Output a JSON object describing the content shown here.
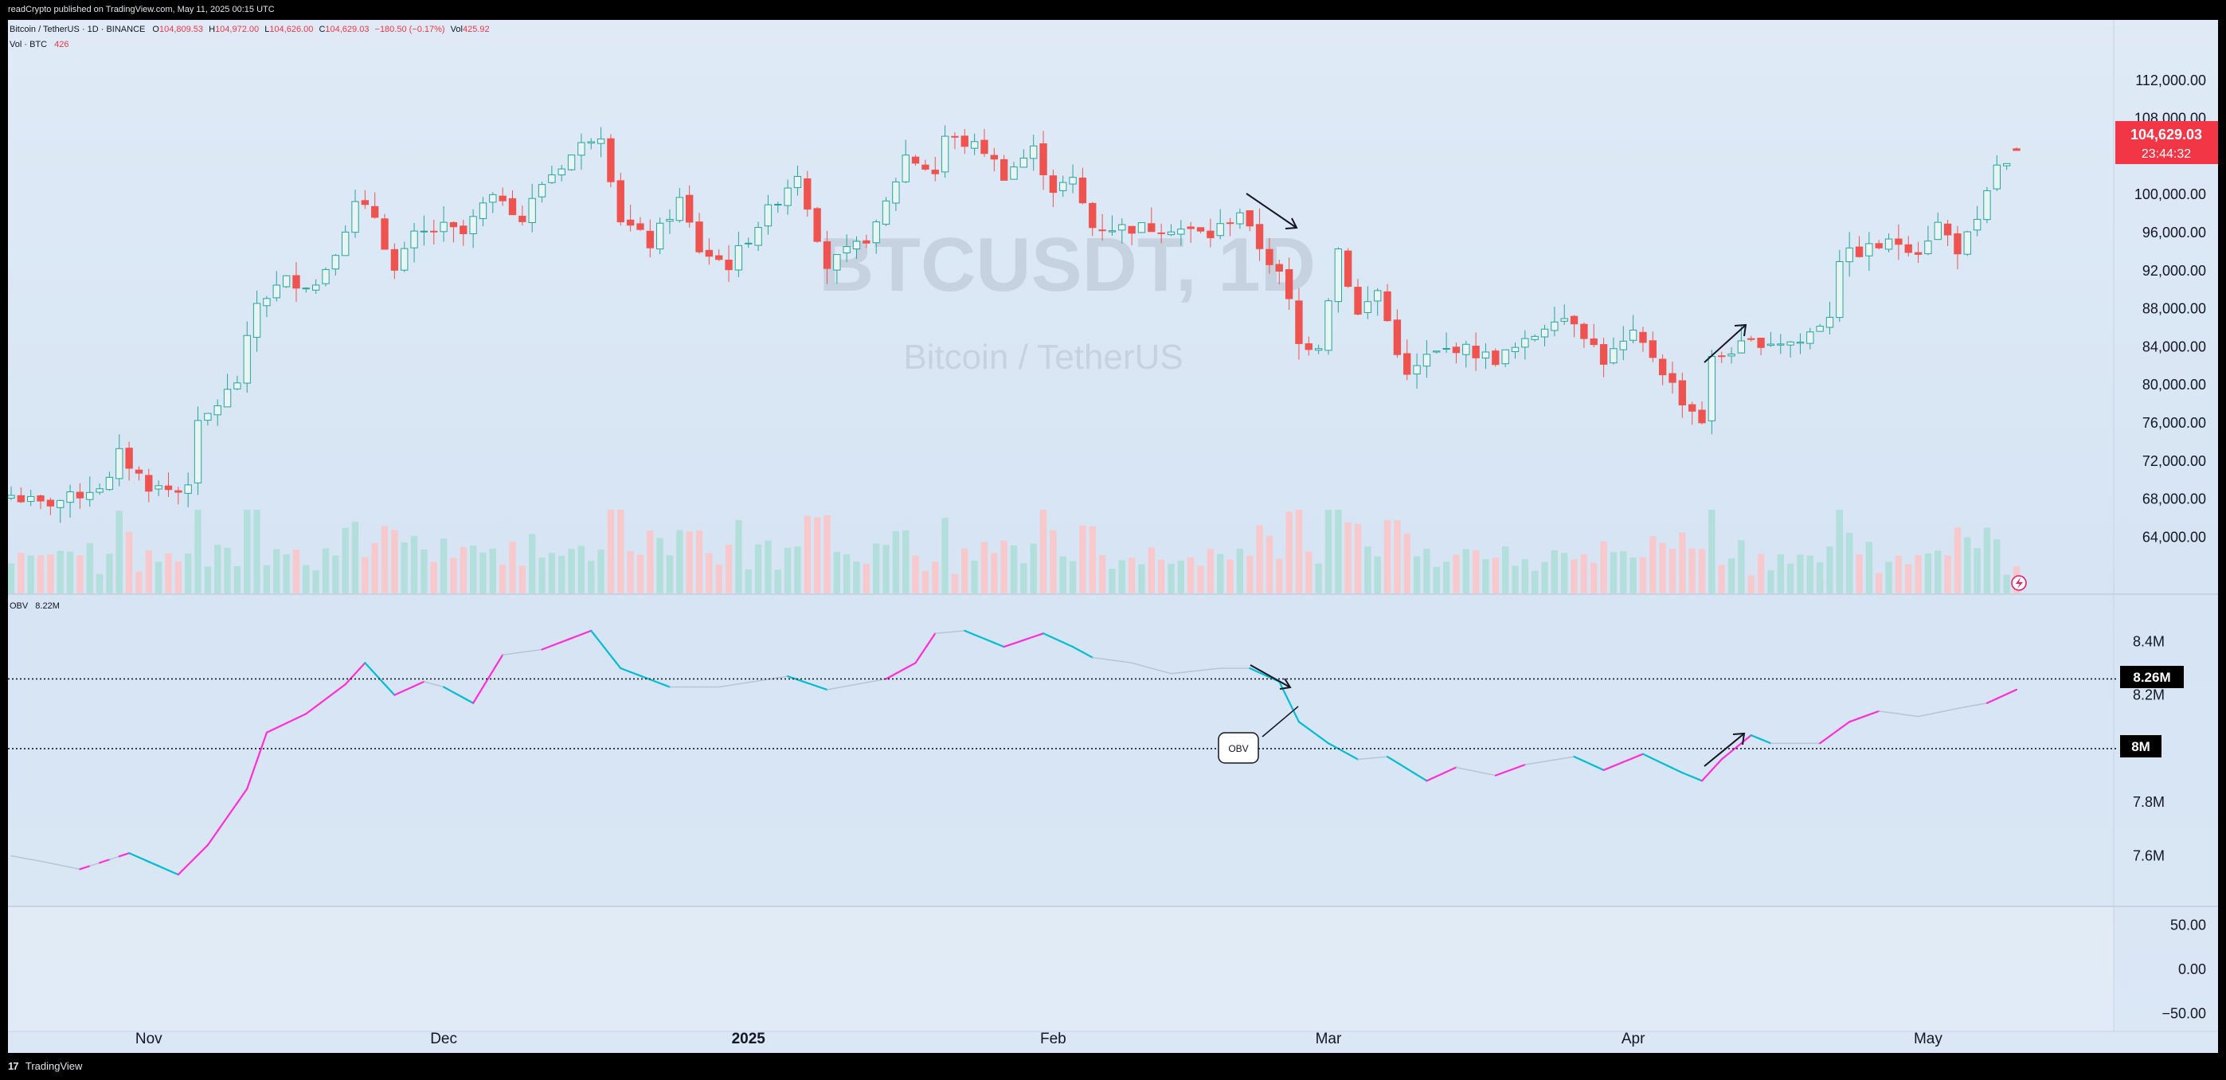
{
  "header": {
    "publish_text": "readCrypto published on TradingView.com, May 11, 2025 00:15 UTC"
  },
  "legend": {
    "symbol": "Bitcoin / TetherUS · 1D · BINANCE",
    "o_label": "O",
    "o_value": "104,809.53",
    "h_label": "H",
    "h_value": "104,972.00",
    "l_label": "L",
    "l_value": "104,626.00",
    "c_label": "C",
    "c_value": "104,629.03",
    "change": "−180.50 (−0.17%)",
    "vol_label": "Vol",
    "vol_value": "425.92",
    "vol_line_label": "Vol · BTC",
    "vol_line_value": "426",
    "obv_label": "OBV",
    "obv_value": "8.22M"
  },
  "watermark": {
    "symbol": "BTCUSDT, 1D",
    "name": "Bitcoin / TetherUS"
  },
  "price_badge": {
    "price": "104,629.03",
    "countdown": "23:44:32"
  },
  "obv_markers": {
    "upper": "8.26M",
    "lower": "8M"
  },
  "annotation": {
    "obv_callout": "OBV"
  },
  "footer": {
    "brand": "TradingView"
  },
  "colors": {
    "up": "#26a69a",
    "down": "#ef5350",
    "vol_up": "#b2dfdb",
    "vol_down": "#f7c9cd",
    "obv_up": "#ff2fd7",
    "obv_down": "#00bcd4",
    "obv_neutral": "#b6c3d1",
    "badge": "#f23645"
  },
  "chart_data": [
    {
      "type": "candlestick",
      "title": "Bitcoin / TetherUS, 1D, BINANCE",
      "xlabel": "",
      "ylabel": "",
      "x_ticks": [
        "Nov",
        "Dec",
        "2025",
        "Feb",
        "Mar",
        "Apr",
        "May"
      ],
      "x_tick_dates": [
        "2024-11-01",
        "2024-12-01",
        "2025-01-01",
        "2025-02-01",
        "2025-03-01",
        "2025-04-01",
        "2025-05-01"
      ],
      "y_ticks": [
        "112,000.00",
        "108,000.00",
        "100,000.00",
        "96,000.00",
        "92,000.00",
        "88,000.00",
        "84,000.00",
        "80,000.00",
        "76,000.00",
        "72,000.00",
        "68,000.00",
        "64,000.00"
      ],
      "y_tick_values": [
        112000,
        108000,
        100000,
        96000,
        92000,
        88000,
        84000,
        80000,
        76000,
        72000,
        68000,
        64000
      ],
      "ylim": [
        60600,
        115000
      ],
      "x_range": [
        "2024-10-18",
        "2025-05-10"
      ],
      "close_anchors": [
        [
          "2024-10-18",
          68400
        ],
        [
          "2024-10-21",
          67400
        ],
        [
          "2024-10-24",
          68100
        ],
        [
          "2024-10-28",
          69900
        ],
        [
          "2024-10-29",
          72700
        ],
        [
          "2024-11-01",
          69400
        ],
        [
          "2024-11-04",
          68800
        ],
        [
          "2024-11-05",
          70000
        ],
        [
          "2024-11-06",
          75600
        ],
        [
          "2024-11-10",
          80400
        ],
        [
          "2024-11-12",
          88600
        ],
        [
          "2024-11-15",
          91000
        ],
        [
          "2024-11-18",
          90500
        ],
        [
          "2024-11-20",
          94300
        ],
        [
          "2024-11-22",
          98900
        ],
        [
          "2024-11-24",
          97800
        ],
        [
          "2024-11-26",
          91900
        ],
        [
          "2024-11-28",
          95600
        ],
        [
          "2024-12-01",
          96500
        ],
        [
          "2024-12-03",
          95800
        ],
        [
          "2024-12-05",
          98800
        ],
        [
          "2024-12-07",
          99800
        ],
        [
          "2024-12-09",
          97300
        ],
        [
          "2024-12-11",
          101200
        ],
        [
          "2024-12-16",
          106100
        ],
        [
          "2024-12-17",
          106500
        ],
        [
          "2024-12-19",
          97500
        ],
        [
          "2024-12-22",
          94800
        ],
        [
          "2024-12-25",
          99400
        ],
        [
          "2024-12-27",
          94200
        ],
        [
          "2024-12-30",
          92600
        ],
        [
          "2025-01-02",
          96900
        ],
        [
          "2025-01-06",
          102300
        ],
        [
          "2025-01-09",
          92500
        ],
        [
          "2025-01-12",
          94500
        ],
        [
          "2025-01-14",
          96500
        ],
        [
          "2025-01-17",
          104100
        ],
        [
          "2025-01-20",
          102300
        ],
        [
          "2025-01-21",
          106100
        ],
        [
          "2025-01-25",
          104700
        ],
        [
          "2025-01-27",
          102100
        ],
        [
          "2025-01-30",
          104700
        ],
        [
          "2025-02-01",
          100600
        ],
        [
          "2025-02-03",
          101400
        ],
        [
          "2025-02-05",
          96600
        ],
        [
          "2025-02-09",
          96500
        ],
        [
          "2025-02-13",
          96600
        ],
        [
          "2025-02-17",
          95700
        ],
        [
          "2025-02-20",
          98300
        ],
        [
          "2025-02-21",
          96100
        ],
        [
          "2025-02-24",
          91500
        ],
        [
          "2025-02-25",
          88700
        ],
        [
          "2025-02-26",
          84200
        ],
        [
          "2025-02-28",
          84300
        ],
        [
          "2025-03-02",
          94300
        ],
        [
          "2025-03-04",
          87300
        ],
        [
          "2025-03-06",
          89900
        ],
        [
          "2025-03-07",
          86700
        ],
        [
          "2025-03-09",
          80700
        ],
        [
          "2025-03-11",
          82900
        ],
        [
          "2025-03-14",
          84000
        ],
        [
          "2025-03-18",
          82700
        ],
        [
          "2025-03-21",
          84300
        ],
        [
          "2025-03-24",
          87300
        ],
        [
          "2025-03-26",
          86900
        ],
        [
          "2025-03-29",
          82600
        ],
        [
          "2025-04-01",
          85100
        ],
        [
          "2025-04-03",
          83100
        ],
        [
          "2025-04-06",
          78400
        ],
        [
          "2025-04-08",
          76300
        ],
        [
          "2025-04-09",
          82600
        ],
        [
          "2025-04-11",
          83700
        ],
        [
          "2025-04-14",
          84600
        ],
        [
          "2025-04-18",
          84500
        ],
        [
          "2025-04-21",
          87500
        ],
        [
          "2025-04-22",
          93400
        ],
        [
          "2025-04-26",
          94600
        ],
        [
          "2025-04-28",
          95000
        ],
        [
          "2025-04-30",
          94200
        ],
        [
          "2025-05-02",
          96900
        ],
        [
          "2025-05-04",
          94300
        ],
        [
          "2025-05-06",
          96800
        ],
        [
          "2025-05-08",
          103200
        ],
        [
          "2025-05-09",
          102900
        ],
        [
          "2025-05-10",
          104629
        ]
      ],
      "last_bar": {
        "open": 104809.53,
        "high": 104972.0,
        "low": 104626.0,
        "close": 104629.03
      },
      "annotations": [
        "down arrow late Feb",
        "up arrow early-mid Apr"
      ]
    },
    {
      "type": "bar",
      "title": "Vol · BTC",
      "note": "volume histogram, colored by candle direction; no volume scale is printed",
      "last_value": 426
    },
    {
      "type": "line",
      "title": "OBV",
      "y_ticks": [
        "8.4M",
        "8.2M",
        "7.8M",
        "7.6M"
      ],
      "y_tick_values": [
        8.4,
        8.2,
        7.8,
        7.6
      ],
      "y_unit": "M",
      "ylim": [
        7.45,
        8.52
      ],
      "reference_lines": [
        8.26,
        8.0
      ],
      "last_value": 8.22,
      "anchors": [
        [
          "2024-10-18",
          7.6
        ],
        [
          "2024-10-21",
          7.58
        ],
        [
          "2024-10-25",
          7.55
        ],
        [
          "2024-10-30",
          7.61
        ],
        [
          "2024-11-04",
          7.53
        ],
        [
          "2024-11-07",
          7.64
        ],
        [
          "2024-11-11",
          7.85
        ],
        [
          "2024-11-13",
          8.06
        ],
        [
          "2024-11-17",
          8.13
        ],
        [
          "2024-11-21",
          8.24
        ],
        [
          "2024-11-23",
          8.32
        ],
        [
          "2024-11-26",
          8.2
        ],
        [
          "2024-11-29",
          8.25
        ],
        [
          "2024-12-01",
          8.23
        ],
        [
          "2024-12-04",
          8.17
        ],
        [
          "2024-12-07",
          8.35
        ],
        [
          "2024-12-11",
          8.37
        ],
        [
          "2024-12-16",
          8.44
        ],
        [
          "2024-12-19",
          8.3
        ],
        [
          "2024-12-24",
          8.23
        ],
        [
          "2024-12-29",
          8.23
        ],
        [
          "2025-01-05",
          8.27
        ],
        [
          "2025-01-09",
          8.22
        ],
        [
          "2025-01-15",
          8.26
        ],
        [
          "2025-01-18",
          8.32
        ],
        [
          "2025-01-20",
          8.43
        ],
        [
          "2025-01-23",
          8.44
        ],
        [
          "2025-01-27",
          8.38
        ],
        [
          "2025-01-31",
          8.43
        ],
        [
          "2025-02-03",
          8.38
        ],
        [
          "2025-02-05",
          8.34
        ],
        [
          "2025-02-09",
          8.32
        ],
        [
          "2025-02-13",
          8.28
        ],
        [
          "2025-02-18",
          8.3
        ],
        [
          "2025-02-21",
          8.3
        ],
        [
          "2025-02-24",
          8.25
        ],
        [
          "2025-02-26",
          8.1
        ],
        [
          "2025-03-01",
          8.02
        ],
        [
          "2025-03-04",
          7.96
        ],
        [
          "2025-03-07",
          7.97
        ],
        [
          "2025-03-11",
          7.88
        ],
        [
          "2025-03-14",
          7.93
        ],
        [
          "2025-03-18",
          7.9
        ],
        [
          "2025-03-21",
          7.94
        ],
        [
          "2025-03-26",
          7.97
        ],
        [
          "2025-03-29",
          7.92
        ],
        [
          "2025-04-02",
          7.98
        ],
        [
          "2025-04-06",
          7.91
        ],
        [
          "2025-04-08",
          7.88
        ],
        [
          "2025-04-10",
          7.96
        ],
        [
          "2025-04-13",
          8.05
        ],
        [
          "2025-04-15",
          8.02
        ],
        [
          "2025-04-20",
          8.02
        ],
        [
          "2025-04-23",
          8.1
        ],
        [
          "2025-04-26",
          8.14
        ],
        [
          "2025-04-30",
          8.12
        ],
        [
          "2025-05-04",
          8.15
        ],
        [
          "2025-05-07",
          8.17
        ],
        [
          "2025-05-10",
          8.22
        ]
      ]
    },
    {
      "type": "line",
      "title": "",
      "note": "empty lower pane, only the scale is printed",
      "y_ticks": [
        "50.00",
        "0.00",
        "−50.00"
      ],
      "y_tick_values": [
        50,
        0,
        -50
      ],
      "ylim": [
        -65,
        65
      ]
    }
  ]
}
